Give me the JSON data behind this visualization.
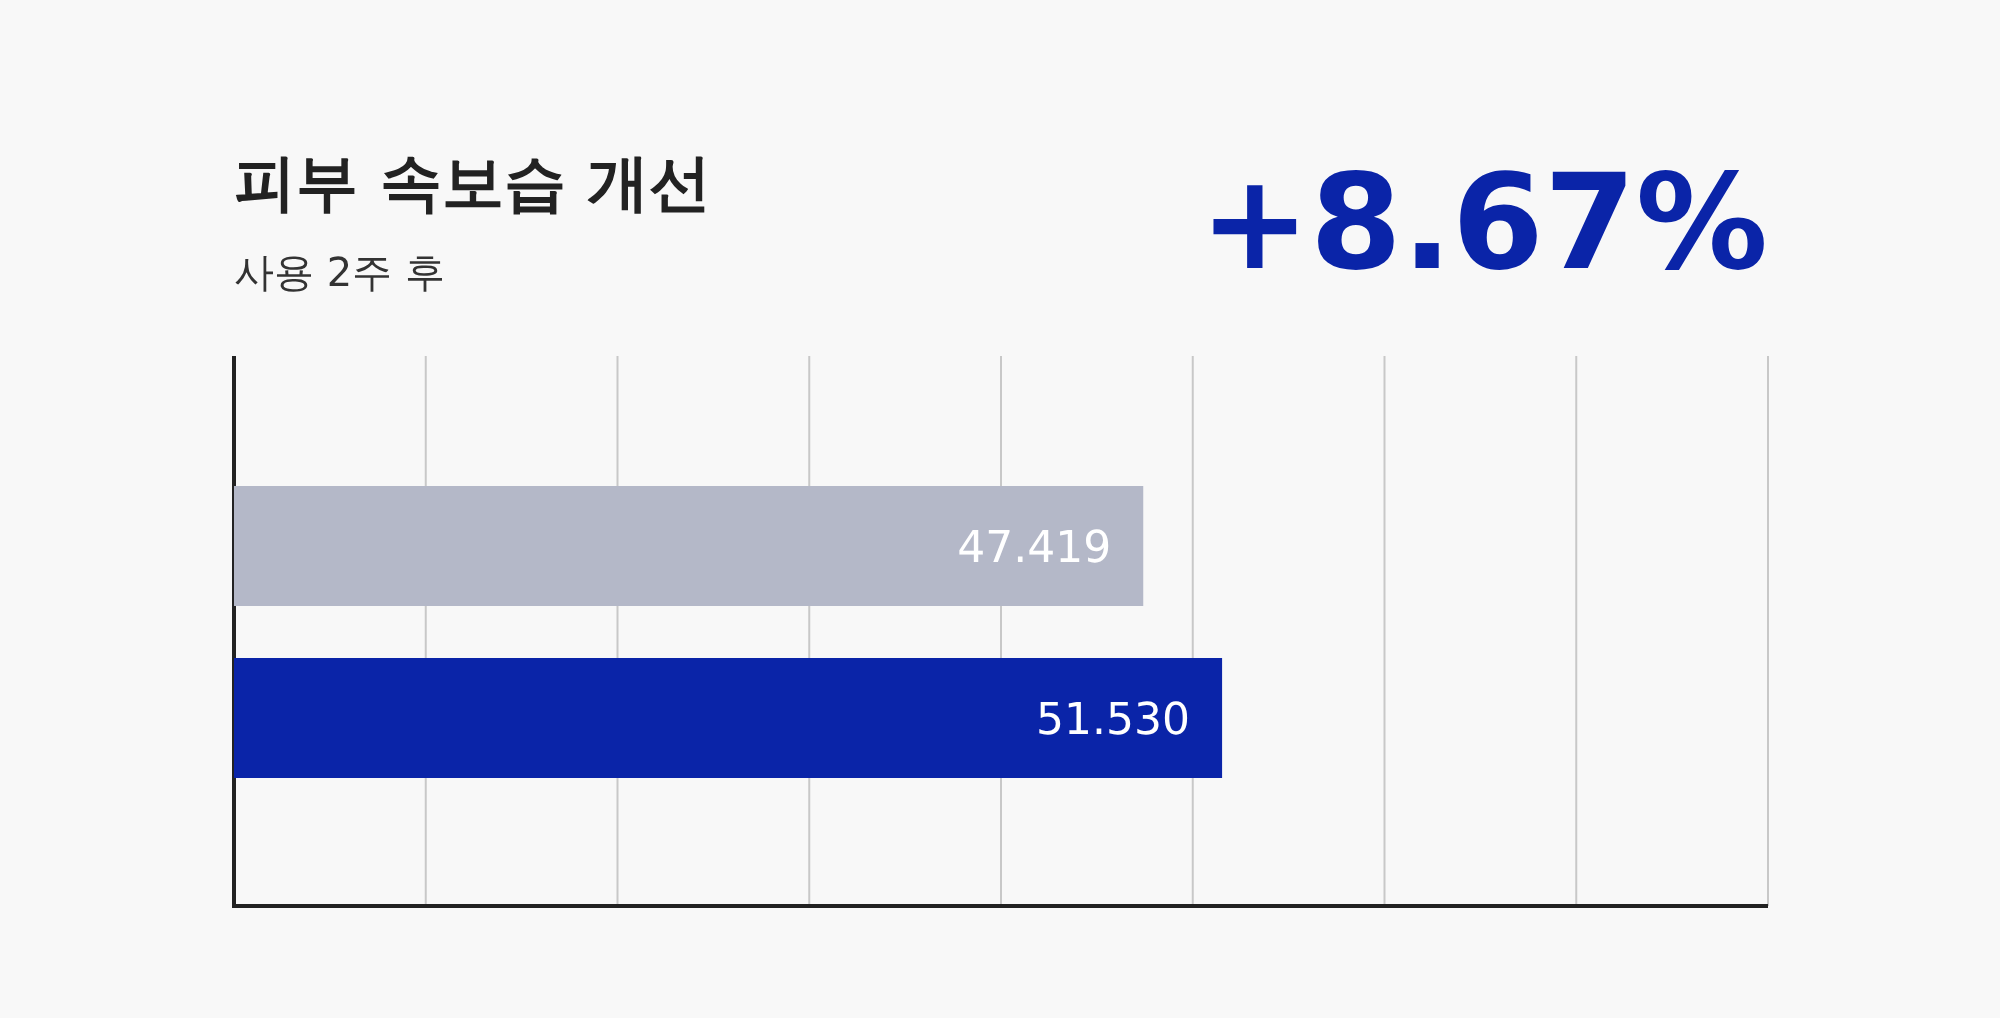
{
  "chart_data": {
    "type": "bar",
    "orientation": "horizontal",
    "title": "피부 속보습 개선",
    "subtitle": "사용 2주 후",
    "annotations": [
      "+8.67%"
    ],
    "categories": [
      null,
      null
    ],
    "series": [
      {
        "colors": [
          "#b4b8c8",
          "#0a24a8"
        ],
        "values": [
          47.419,
          51.53
        ],
        "value_labels": [
          "47.419",
          "51.530"
        ]
      }
    ],
    "xlim": [
      0,
      80
    ],
    "xticks": [
      {
        "value": 10,
        "label": null
      },
      {
        "value": 20,
        "label": null
      },
      {
        "value": 30,
        "label": null
      },
      {
        "value": 40,
        "label": null
      },
      {
        "value": 50,
        "label": null
      },
      {
        "value": 60,
        "label": null
      },
      {
        "value": 70,
        "label": null
      },
      {
        "value": 80,
        "label": null
      }
    ],
    "grid": "x"
  }
}
